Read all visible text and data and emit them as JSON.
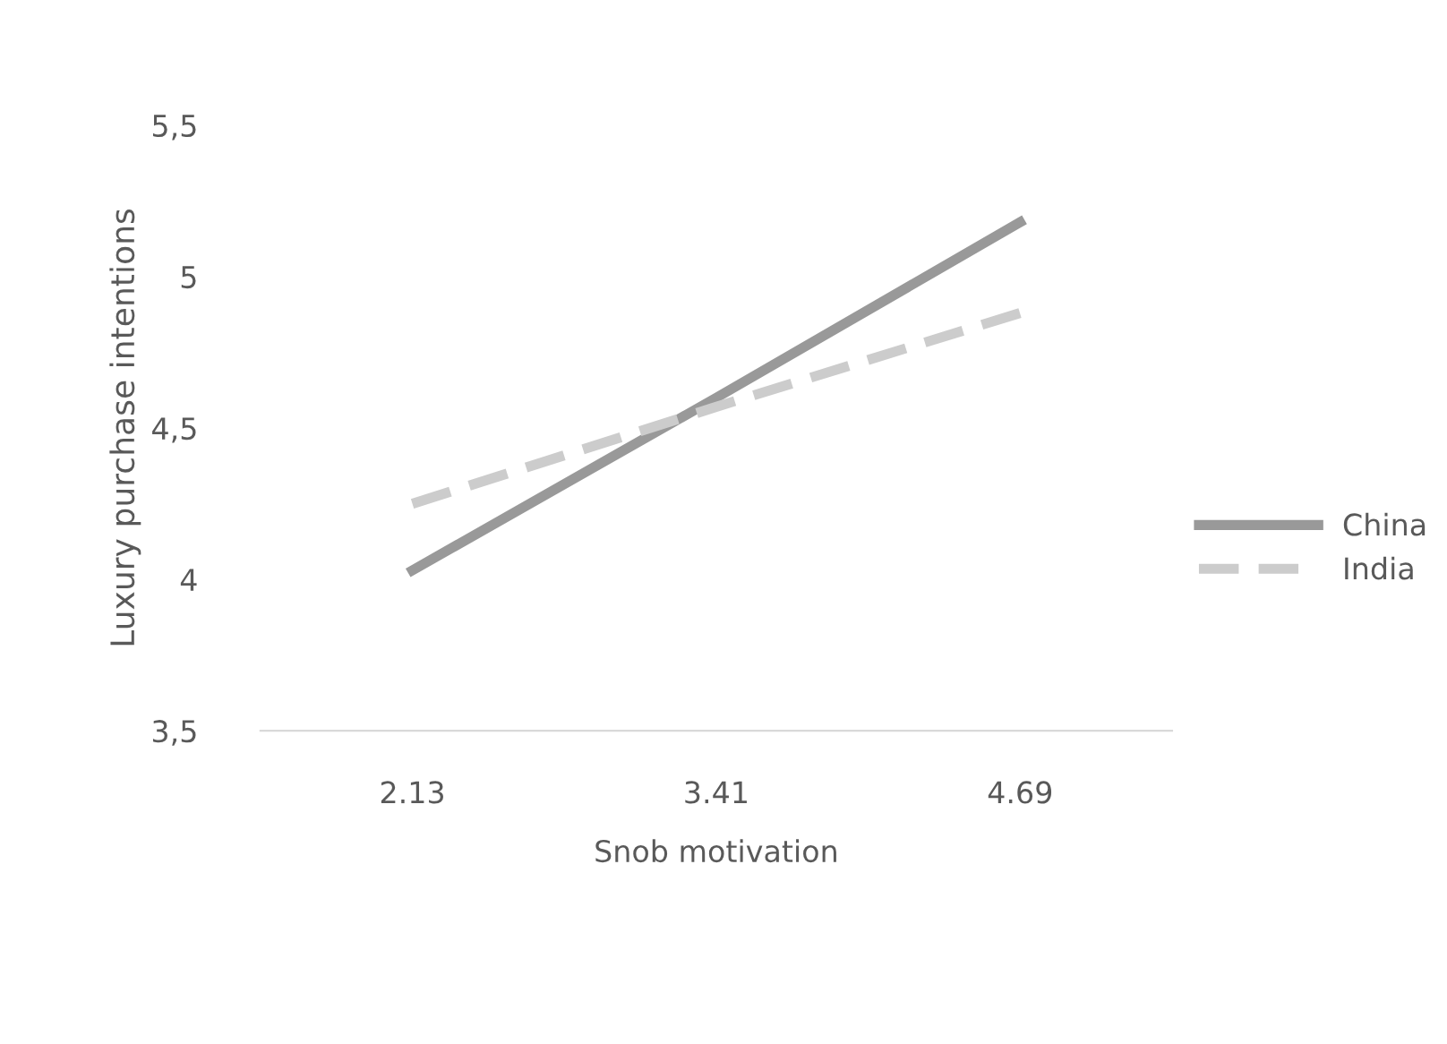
{
  "chart_data": {
    "type": "line",
    "xlabel": "Snob motivation",
    "ylabel": "Luxury purchase intentions",
    "categories": [
      "2.13",
      "3.41",
      "4.69"
    ],
    "series": [
      {
        "name": "China",
        "color": "#999999",
        "values": [
          4.03,
          4.6,
          5.18
        ],
        "line_style": "solid"
      },
      {
        "name": "India",
        "color": "#cccccc",
        "values": [
          4.25,
          4.57,
          4.88
        ],
        "line_style": "dashed"
      }
    ],
    "ylim": [
      3.5,
      5.5
    ],
    "yticks": [
      {
        "value": 3.5,
        "label": "3,5"
      },
      {
        "value": 4,
        "label": "4"
      },
      {
        "value": 4.5,
        "label": "4,5"
      },
      {
        "value": 5,
        "label": "5"
      },
      {
        "value": 5.5,
        "label": "5,5"
      }
    ],
    "grid": false,
    "legend": "right",
    "marker": "none"
  }
}
